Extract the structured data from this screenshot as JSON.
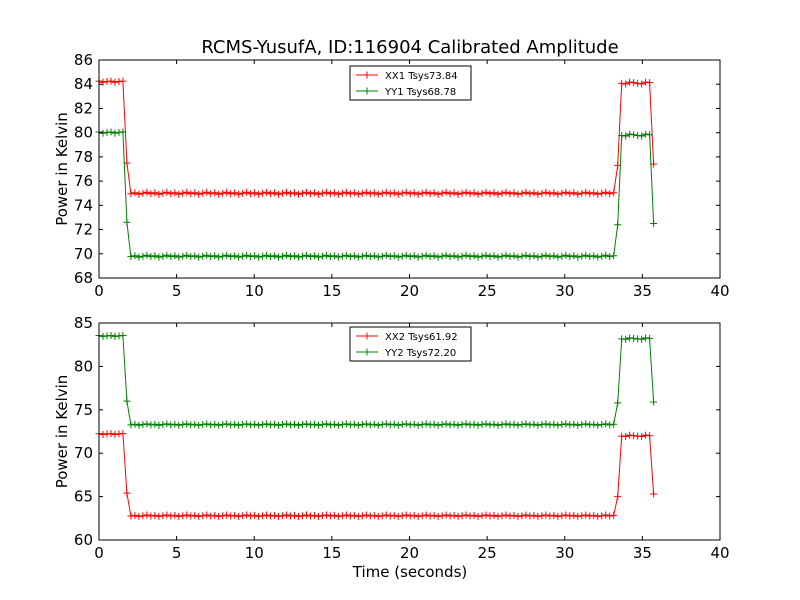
{
  "chart_data": [
    {
      "type": "line",
      "title": "RCMS-YusufA, ID:116904 Calibrated Amplitude",
      "xlabel": "",
      "ylabel": "Power in Kelvin",
      "xlim": [
        0,
        40
      ],
      "ylim": [
        68,
        86
      ],
      "xticks": [
        0,
        5,
        10,
        15,
        20,
        25,
        30,
        35,
        40
      ],
      "yticks": [
        68,
        70,
        72,
        74,
        76,
        78,
        80,
        82,
        84,
        86
      ],
      "grid": false,
      "legend_position": "top-center",
      "marker": "plus",
      "series": [
        {
          "name": "XX1 Tsys73.84",
          "color": "#ff0000",
          "low_level": 75.0,
          "high_level_start": 84.2,
          "high_level_end": 84.1,
          "transition_points": [
            [
              1.7,
              77.5
            ],
            [
              33.4,
              77.3
            ],
            [
              35.7,
              77.4
            ]
          ]
        },
        {
          "name": "YY1 Tsys68.78",
          "color": "#008000",
          "low_level": 69.8,
          "high_level_start": 80.0,
          "high_level_end": 79.8,
          "transition_points": [
            [
              1.7,
              72.6
            ],
            [
              33.4,
              72.4
            ],
            [
              35.7,
              72.5
            ]
          ]
        }
      ]
    },
    {
      "type": "line",
      "title": "",
      "xlabel": "Time (seconds)",
      "ylabel": "Power in Kelvin",
      "xlim": [
        0,
        40
      ],
      "ylim": [
        60,
        85
      ],
      "xticks": [
        0,
        5,
        10,
        15,
        20,
        25,
        30,
        35,
        40
      ],
      "yticks": [
        60,
        65,
        70,
        75,
        80,
        85
      ],
      "grid": false,
      "legend_position": "top-center",
      "marker": "plus",
      "series": [
        {
          "name": "XX2 Tsys61.92",
          "color": "#ff0000",
          "low_level": 62.8,
          "high_level_start": 72.2,
          "high_level_end": 72.0,
          "transition_points": [
            [
              1.7,
              65.4
            ],
            [
              33.4,
              65.0
            ],
            [
              35.7,
              65.3
            ]
          ]
        },
        {
          "name": "YY2 Tsys72.20",
          "color": "#008000",
          "low_level": 73.3,
          "high_level_start": 83.5,
          "high_level_end": 83.2,
          "transition_points": [
            [
              1.7,
              76.0
            ],
            [
              33.4,
              75.8
            ],
            [
              35.7,
              75.9
            ]
          ]
        }
      ]
    }
  ]
}
